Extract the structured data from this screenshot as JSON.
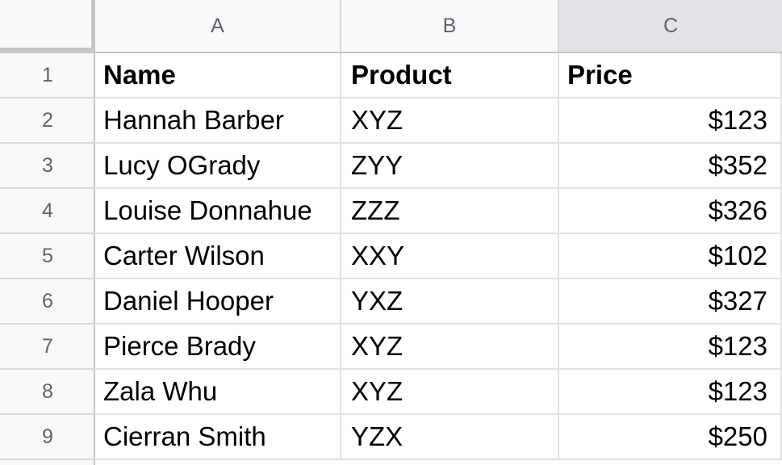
{
  "columns": [
    {
      "letter": "A"
    },
    {
      "letter": "B"
    },
    {
      "letter": "C"
    }
  ],
  "selected_column": "C",
  "rows": [
    {
      "num": "1",
      "cells": [
        "Name",
        "Product",
        "Price"
      ],
      "header": true
    },
    {
      "num": "2",
      "cells": [
        "Hannah Barber",
        "XYZ",
        "$123"
      ]
    },
    {
      "num": "3",
      "cells": [
        "Lucy OGrady",
        "ZYY",
        "$352"
      ]
    },
    {
      "num": "4",
      "cells": [
        "Louise Donnahue",
        "ZZZ",
        "$326"
      ]
    },
    {
      "num": "5",
      "cells": [
        "Carter Wilson",
        "XXY",
        "$102"
      ]
    },
    {
      "num": "6",
      "cells": [
        "Daniel Hooper",
        "YXZ",
        "$327"
      ]
    },
    {
      "num": "7",
      "cells": [
        "Pierce Brady",
        "XYZ",
        "$123"
      ]
    },
    {
      "num": "8",
      "cells": [
        "Zala Whu",
        "XYZ",
        "$123"
      ]
    },
    {
      "num": "9",
      "cells": [
        "Cierran Smith",
        "YZX",
        "$250"
      ]
    }
  ],
  "colors": {
    "header_bg": "#f8f9fa",
    "selected_header_bg": "#e1e3e6",
    "gridline": "#e0e2e4",
    "header_text": "#5f6368"
  }
}
